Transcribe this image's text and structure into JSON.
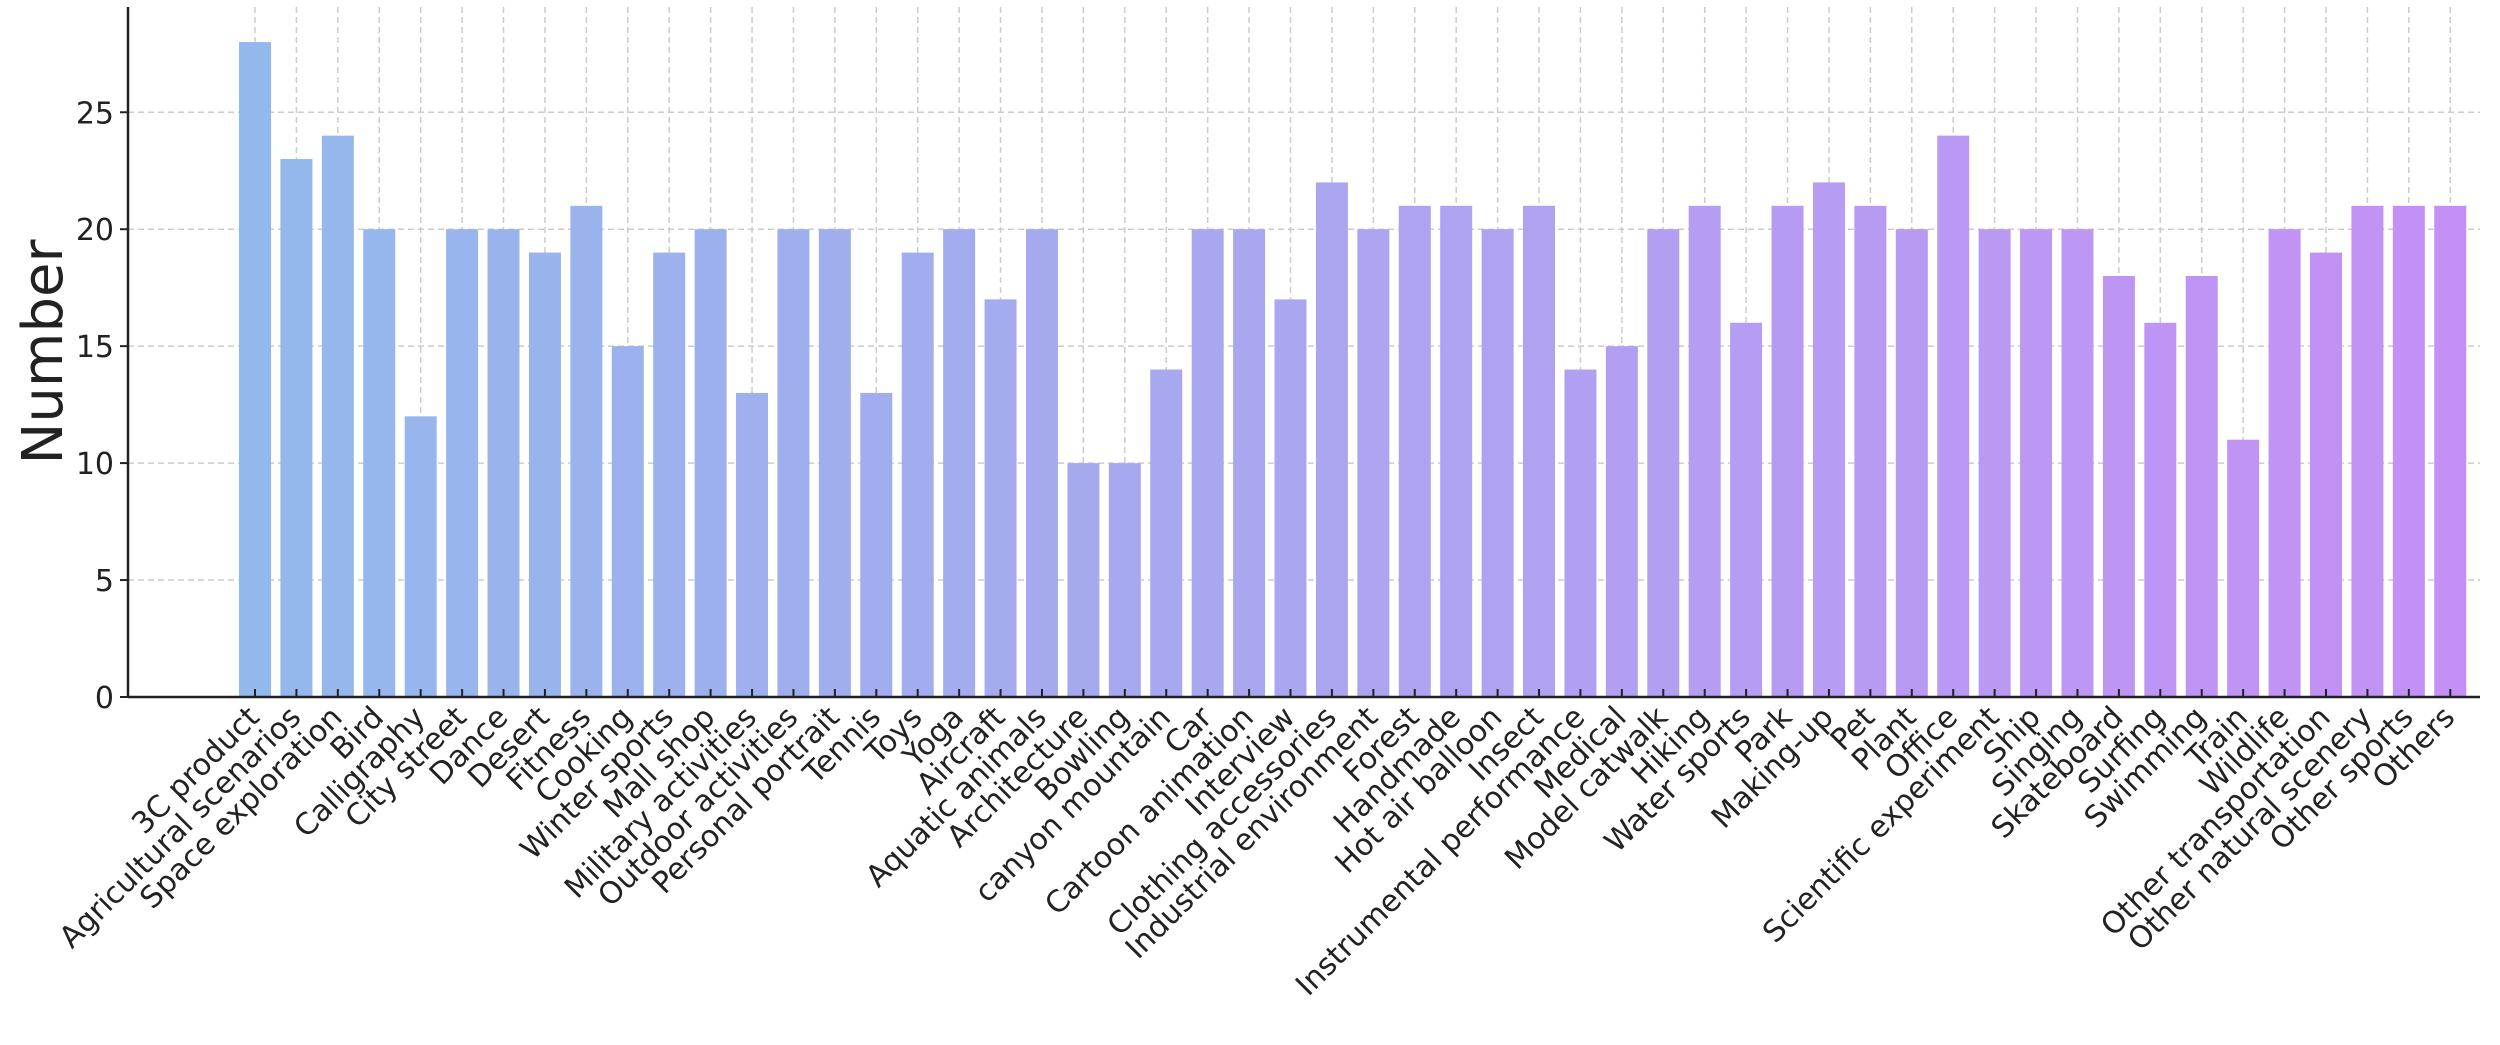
{
  "chart_data": {
    "type": "bar",
    "title": "",
    "xlabel": "",
    "ylabel": "Number",
    "ylim": [
      0,
      29.5
    ],
    "yticks": [
      0,
      5,
      10,
      15,
      20,
      25
    ],
    "grid": true,
    "colors": {
      "start": "#93b9ec",
      "end": "#c490f5"
    },
    "categories": [
      "3C product",
      "Agricultural scenarios",
      "Space exploration",
      "Bird",
      "Calligraphy",
      "City street",
      "Dance",
      "Desert",
      "Fitness",
      "Cooking",
      "Winter sports",
      "Mall shop",
      "Military activities",
      "Outdoor activities",
      "Personal portrait",
      "Tennis",
      "Toys",
      "Yoga",
      "Aircraft",
      "Aquatic animals",
      "Architecture",
      "Bowling",
      "canyon mountain",
      "Car",
      "Cartoon animation",
      "Interview",
      "Clothing accessories",
      "Industrial environment",
      "Forest",
      "Handmade",
      "Hot air balloon",
      "Insect",
      "Instrumental performance",
      "Medical",
      "Model catwalk",
      "Hiking",
      "Water sports",
      "Park",
      "Making-up",
      "Pet",
      "Plant",
      "Office",
      "Scientific experiment",
      "Ship",
      "Singing",
      "Skateboard",
      "Surfing",
      "Swimming",
      "Train",
      "Wildlife",
      "Other transportation",
      "Other natural scenery",
      "Other sports",
      "Others"
    ],
    "values": [
      28,
      23,
      24,
      20,
      12,
      20,
      20,
      19,
      21,
      15,
      19,
      20,
      13,
      20,
      20,
      13,
      19,
      20,
      17,
      20,
      10,
      10,
      14,
      20,
      20,
      17,
      22,
      20,
      21,
      21,
      20,
      21,
      14,
      15,
      20,
      21,
      16,
      21,
      22,
      21,
      20,
      24,
      20,
      20,
      20,
      18,
      16,
      18,
      11,
      20,
      19,
      21,
      21,
      21
    ]
  }
}
